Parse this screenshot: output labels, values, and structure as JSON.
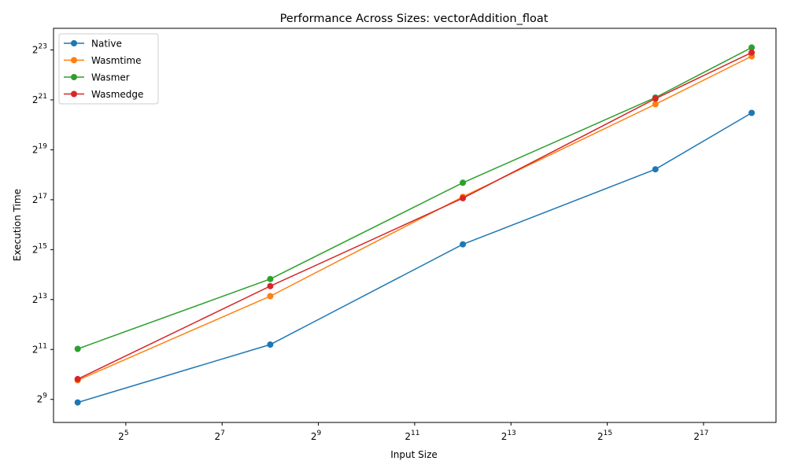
{
  "chart_data": {
    "type": "line",
    "title": "Performance Across Sizes: vectorAddition_float",
    "xlabel": "Input Size",
    "ylabel": "Execution Time",
    "xscale": "log2",
    "yscale": "log2",
    "x": [
      16,
      256,
      4096,
      65536,
      262144
    ],
    "xlim": [
      11.3,
      372000
    ],
    "ylim": [
      270,
      15300000
    ],
    "x_ticks": [
      {
        "exp": "5",
        "value": 32
      },
      {
        "exp": "7",
        "value": 128
      },
      {
        "exp": "9",
        "value": 512
      },
      {
        "exp": "11",
        "value": 2048
      },
      {
        "exp": "13",
        "value": 8192
      },
      {
        "exp": "15",
        "value": 32768
      },
      {
        "exp": "17",
        "value": 131072
      }
    ],
    "y_ticks": [
      {
        "exp": "9",
        "value": 512
      },
      {
        "exp": "11",
        "value": 2048
      },
      {
        "exp": "13",
        "value": 8192
      },
      {
        "exp": "15",
        "value": 32768
      },
      {
        "exp": "17",
        "value": 131072
      },
      {
        "exp": "19",
        "value": 524288
      },
      {
        "exp": "21",
        "value": 2097152
      },
      {
        "exp": "23",
        "value": 8388608
      }
    ],
    "tick_base": "2",
    "grid": false,
    "legend_position": "upper-left",
    "series": [
      {
        "name": "Native",
        "color": "#1f77b4",
        "values": [
          470,
          2350,
          38000,
          305000,
          1460000
        ]
      },
      {
        "name": "Wasmtime",
        "color": "#ff7f0e",
        "values": [
          870,
          9000,
          142000,
          1860000,
          7050000
        ]
      },
      {
        "name": "Wasmer",
        "color": "#2ca02c",
        "values": [
          2080,
          14500,
          210000,
          2240000,
          8980000
        ]
      },
      {
        "name": "Wasmedge",
        "color": "#d62728",
        "values": [
          900,
          11900,
          137000,
          2170000,
          7800000
        ]
      }
    ]
  }
}
